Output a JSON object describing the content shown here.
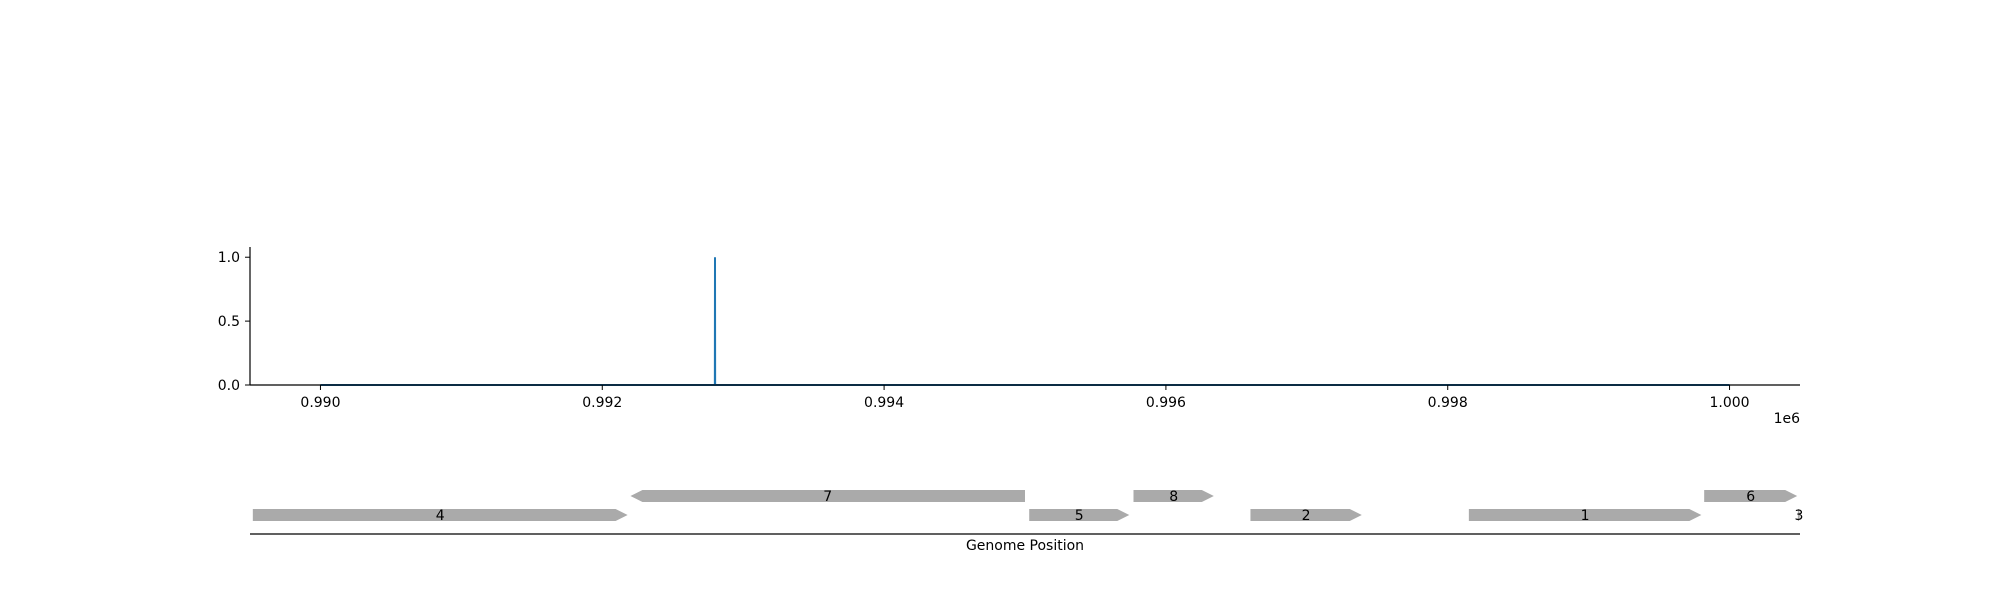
{
  "colors": {
    "line": "#1f77b4",
    "gene_fill": "#aaaaaa",
    "axis": "#000000"
  },
  "chart_data": [
    {
      "type": "line",
      "x": [
        990000,
        992799,
        992800,
        992801,
        1000000
      ],
      "y": [
        0,
        0,
        1.0,
        0,
        0
      ],
      "xlim": [
        989500,
        1000500
      ],
      "ylim": [
        0,
        1.08
      ],
      "x_ticks": [
        990000,
        992000,
        994000,
        996000,
        998000,
        1000000
      ],
      "x_tick_labels": [
        "0.990",
        "0.992",
        "0.994",
        "0.996",
        "0.998",
        "1.000"
      ],
      "x_offset_label": "1e6",
      "y_ticks": [
        0,
        0.5,
        1.0
      ],
      "y_tick_labels": [
        "0.0",
        "0.5",
        "1.0"
      ],
      "grid": false,
      "legend": "none"
    },
    {
      "type": "gene_track",
      "xlabel": "Genome Position",
      "xlim": [
        989500,
        1000500
      ],
      "genes": [
        {
          "label": "4",
          "start": 989520,
          "end": 992180,
          "strand": "+",
          "row": 0
        },
        {
          "label": "7",
          "start": 992200,
          "end": 995000,
          "strand": "-",
          "row": 1
        },
        {
          "label": "5",
          "start": 995030,
          "end": 995740,
          "strand": "+",
          "row": 0
        },
        {
          "label": "8",
          "start": 995770,
          "end": 996340,
          "strand": "+",
          "row": 1
        },
        {
          "label": "2",
          "start": 996600,
          "end": 997390,
          "strand": "+",
          "row": 0
        },
        {
          "label": "1",
          "start": 998150,
          "end": 999800,
          "strand": "+",
          "row": 0
        },
        {
          "label": "6",
          "start": 999820,
          "end": 1000480,
          "strand": "+",
          "row": 1
        },
        {
          "label": "3",
          "start": 1000485,
          "end": 1000500,
          "strand": "+",
          "row": 0
        }
      ]
    }
  ]
}
